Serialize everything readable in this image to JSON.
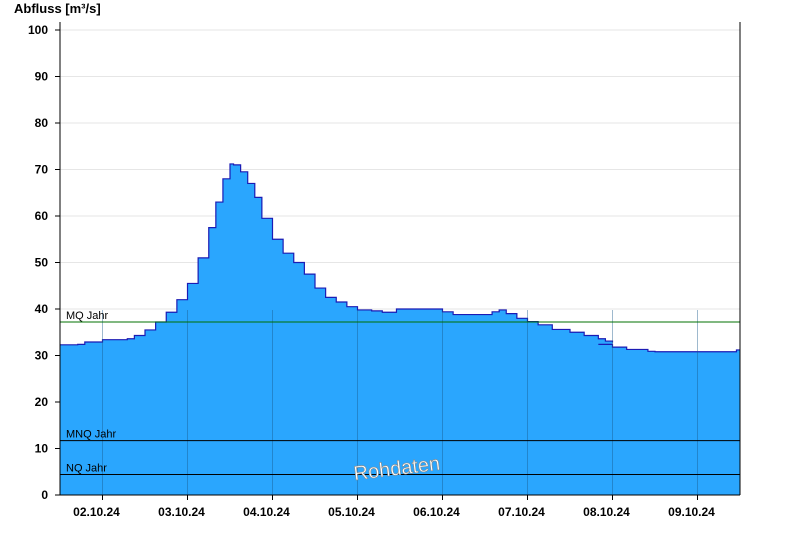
{
  "chart_data": {
    "type": "area",
    "title": "",
    "ylabel": "Abfluss [m³/s]",
    "xlabel": "",
    "ylim": [
      0,
      100
    ],
    "yticks": [
      0,
      10,
      20,
      30,
      40,
      50,
      60,
      70,
      80,
      90,
      100
    ],
    "xlim": [
      "2024-10-01T12:00",
      "2024-10-09T12:00"
    ],
    "xticks": [
      {
        "t": "2024-10-02T00:00",
        "label": "02.10.24"
      },
      {
        "t": "2024-10-03T00:00",
        "label": "03.10.24"
      },
      {
        "t": "2024-10-04T00:00",
        "label": "04.10.24"
      },
      {
        "t": "2024-10-05T00:00",
        "label": "05.10.24"
      },
      {
        "t": "2024-10-06T00:00",
        "label": "06.10.24"
      },
      {
        "t": "2024-10-07T00:00",
        "label": "07.10.24"
      },
      {
        "t": "2024-10-08T00:00",
        "label": "08.10.24"
      },
      {
        "t": "2024-10-09T00:00",
        "label": "09.10.24"
      }
    ],
    "day_lines": [
      "2024-10-02T00:00",
      "2024-10-03T00:00",
      "2024-10-04T00:00",
      "2024-10-05T00:00",
      "2024-10-06T00:00",
      "2024-10-07T00:00",
      "2024-10-08T00:00",
      "2024-10-09T00:00"
    ],
    "grid": "horizontal",
    "fill_color": "#2aa6fe",
    "line_color": "#1b1bb4",
    "series": [
      {
        "segments": [
          [
            [
              "2024-10-01T12:00",
              32.3
            ],
            [
              "2024-10-01T17:00",
              32.4
            ],
            [
              "2024-10-01T19:00",
              32.9
            ],
            [
              "2024-10-02T00:00",
              33.4
            ],
            [
              "2024-10-02T07:00",
              33.6
            ],
            [
              "2024-10-02T09:00",
              34.3
            ],
            [
              "2024-10-02T12:00",
              35.5
            ],
            [
              "2024-10-02T15:00",
              37.2
            ],
            [
              "2024-10-02T18:00",
              39.3
            ],
            [
              "2024-10-02T21:00",
              42.0
            ],
            [
              "2024-10-03T00:00",
              45.5
            ],
            [
              "2024-10-03T03:00",
              51.0
            ],
            [
              "2024-10-03T06:00",
              57.5
            ],
            [
              "2024-10-03T08:00",
              63.0
            ],
            [
              "2024-10-03T10:00",
              68.0
            ],
            [
              "2024-10-03T12:00",
              71.2
            ],
            [
              "2024-10-03T13:00",
              71.0
            ],
            [
              "2024-10-03T15:00",
              69.5
            ],
            [
              "2024-10-03T17:00",
              67.0
            ],
            [
              "2024-10-03T19:00",
              64.0
            ],
            [
              "2024-10-03T21:00",
              59.5
            ],
            [
              "2024-10-04T00:00",
              55.0
            ],
            [
              "2024-10-04T03:00",
              52.0
            ],
            [
              "2024-10-04T06:00",
              50.0
            ],
            [
              "2024-10-04T09:00",
              47.5
            ],
            [
              "2024-10-04T12:00",
              44.5
            ],
            [
              "2024-10-04T15:00",
              42.5
            ],
            [
              "2024-10-04T18:00",
              41.5
            ],
            [
              "2024-10-04T21:00",
              40.5
            ],
            [
              "2024-10-05T00:00",
              39.8
            ],
            [
              "2024-10-05T04:00",
              39.6
            ],
            [
              "2024-10-05T07:00",
              39.3
            ],
            [
              "2024-10-05T11:00",
              40.0
            ],
            [
              "2024-10-05T18:00",
              40.0
            ],
            [
              "2024-10-06T00:00",
              39.4
            ],
            [
              "2024-10-06T03:00",
              38.8
            ],
            [
              "2024-10-06T10:00",
              38.8
            ],
            [
              "2024-10-06T14:00",
              39.4
            ],
            [
              "2024-10-06T16:00",
              39.8
            ],
            [
              "2024-10-06T18:00",
              39.0
            ],
            [
              "2024-10-06T21:00",
              38.0
            ],
            [
              "2024-10-07T00:00",
              37.3
            ],
            [
              "2024-10-07T03:00",
              36.6
            ],
            [
              "2024-10-07T07:00",
              35.6
            ],
            [
              "2024-10-07T12:00",
              35.0
            ],
            [
              "2024-10-07T16:00",
              34.3
            ],
            [
              "2024-10-07T20:00",
              33.6
            ],
            [
              "2024-10-07T22:00",
              33.1
            ],
            [
              "2024-10-08T00:00",
              32.8
            ]
          ],
          [
            [
              "2024-10-07T20:00",
              32.4
            ],
            [
              "2024-10-08T00:00",
              31.8
            ],
            [
              "2024-10-08T04:00",
              31.3
            ],
            [
              "2024-10-08T10:00",
              30.9
            ],
            [
              "2024-10-08T12:00",
              30.8
            ],
            [
              "2024-10-09T00:00",
              30.8
            ],
            [
              "2024-10-09T10:00",
              30.8
            ],
            [
              "2024-10-09T11:00",
              31.2
            ],
            [
              "2024-10-09T12:00",
              31.2
            ]
          ]
        ]
      }
    ],
    "reference_lines": [
      {
        "label": "MQ Jahr",
        "value": 37.2,
        "color": "#007000"
      },
      {
        "label": "MNQ Jahr",
        "value": 11.7,
        "color": "#000000"
      },
      {
        "label": "NQ Jahr",
        "value": 4.4,
        "color": "#000000"
      }
    ],
    "annotations": [
      {
        "text": "Rohdaten"
      }
    ]
  }
}
